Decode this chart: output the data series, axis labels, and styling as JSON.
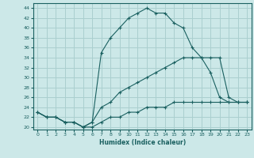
{
  "xlabel": "Humidex (Indice chaleur)",
  "background_color": "#cce8e8",
  "grid_color": "#aacfcf",
  "line_color": "#1a6060",
  "xlim": [
    -0.5,
    23.5
  ],
  "ylim": [
    19.5,
    45
  ],
  "xticks": [
    0,
    1,
    2,
    3,
    4,
    5,
    6,
    7,
    8,
    9,
    10,
    11,
    12,
    13,
    14,
    15,
    16,
    17,
    18,
    19,
    20,
    21,
    22,
    23
  ],
  "yticks": [
    20,
    22,
    24,
    26,
    28,
    30,
    32,
    34,
    36,
    38,
    40,
    42,
    44
  ],
  "curve1_x": [
    0,
    1,
    2,
    3,
    4,
    5,
    6,
    7,
    8,
    9,
    10,
    11,
    12,
    13,
    14,
    15,
    16,
    17,
    18,
    19,
    20,
    21,
    22,
    23
  ],
  "curve1_y": [
    23,
    22,
    22,
    21,
    21,
    20,
    21,
    35,
    38,
    40,
    42,
    43,
    44,
    43,
    43,
    41,
    40,
    36,
    34,
    31,
    26,
    25,
    25,
    25
  ],
  "curve2_x": [
    0,
    1,
    2,
    3,
    4,
    5,
    6,
    7,
    8,
    9,
    10,
    11,
    12,
    13,
    14,
    15,
    16,
    17,
    18,
    19,
    20,
    21,
    22,
    23
  ],
  "curve2_y": [
    23,
    22,
    22,
    21,
    21,
    20,
    21,
    24,
    25,
    27,
    28,
    29,
    30,
    31,
    32,
    33,
    34,
    34,
    34,
    34,
    34,
    26,
    25,
    25
  ],
  "curve3_x": [
    0,
    1,
    2,
    3,
    4,
    5,
    6,
    7,
    8,
    9,
    10,
    11,
    12,
    13,
    14,
    15,
    16,
    17,
    18,
    19,
    20,
    21,
    22,
    23
  ],
  "curve3_y": [
    23,
    22,
    22,
    21,
    21,
    20,
    20,
    21,
    22,
    22,
    23,
    23,
    24,
    24,
    24,
    25,
    25,
    25,
    25,
    25,
    25,
    25,
    25,
    25
  ]
}
